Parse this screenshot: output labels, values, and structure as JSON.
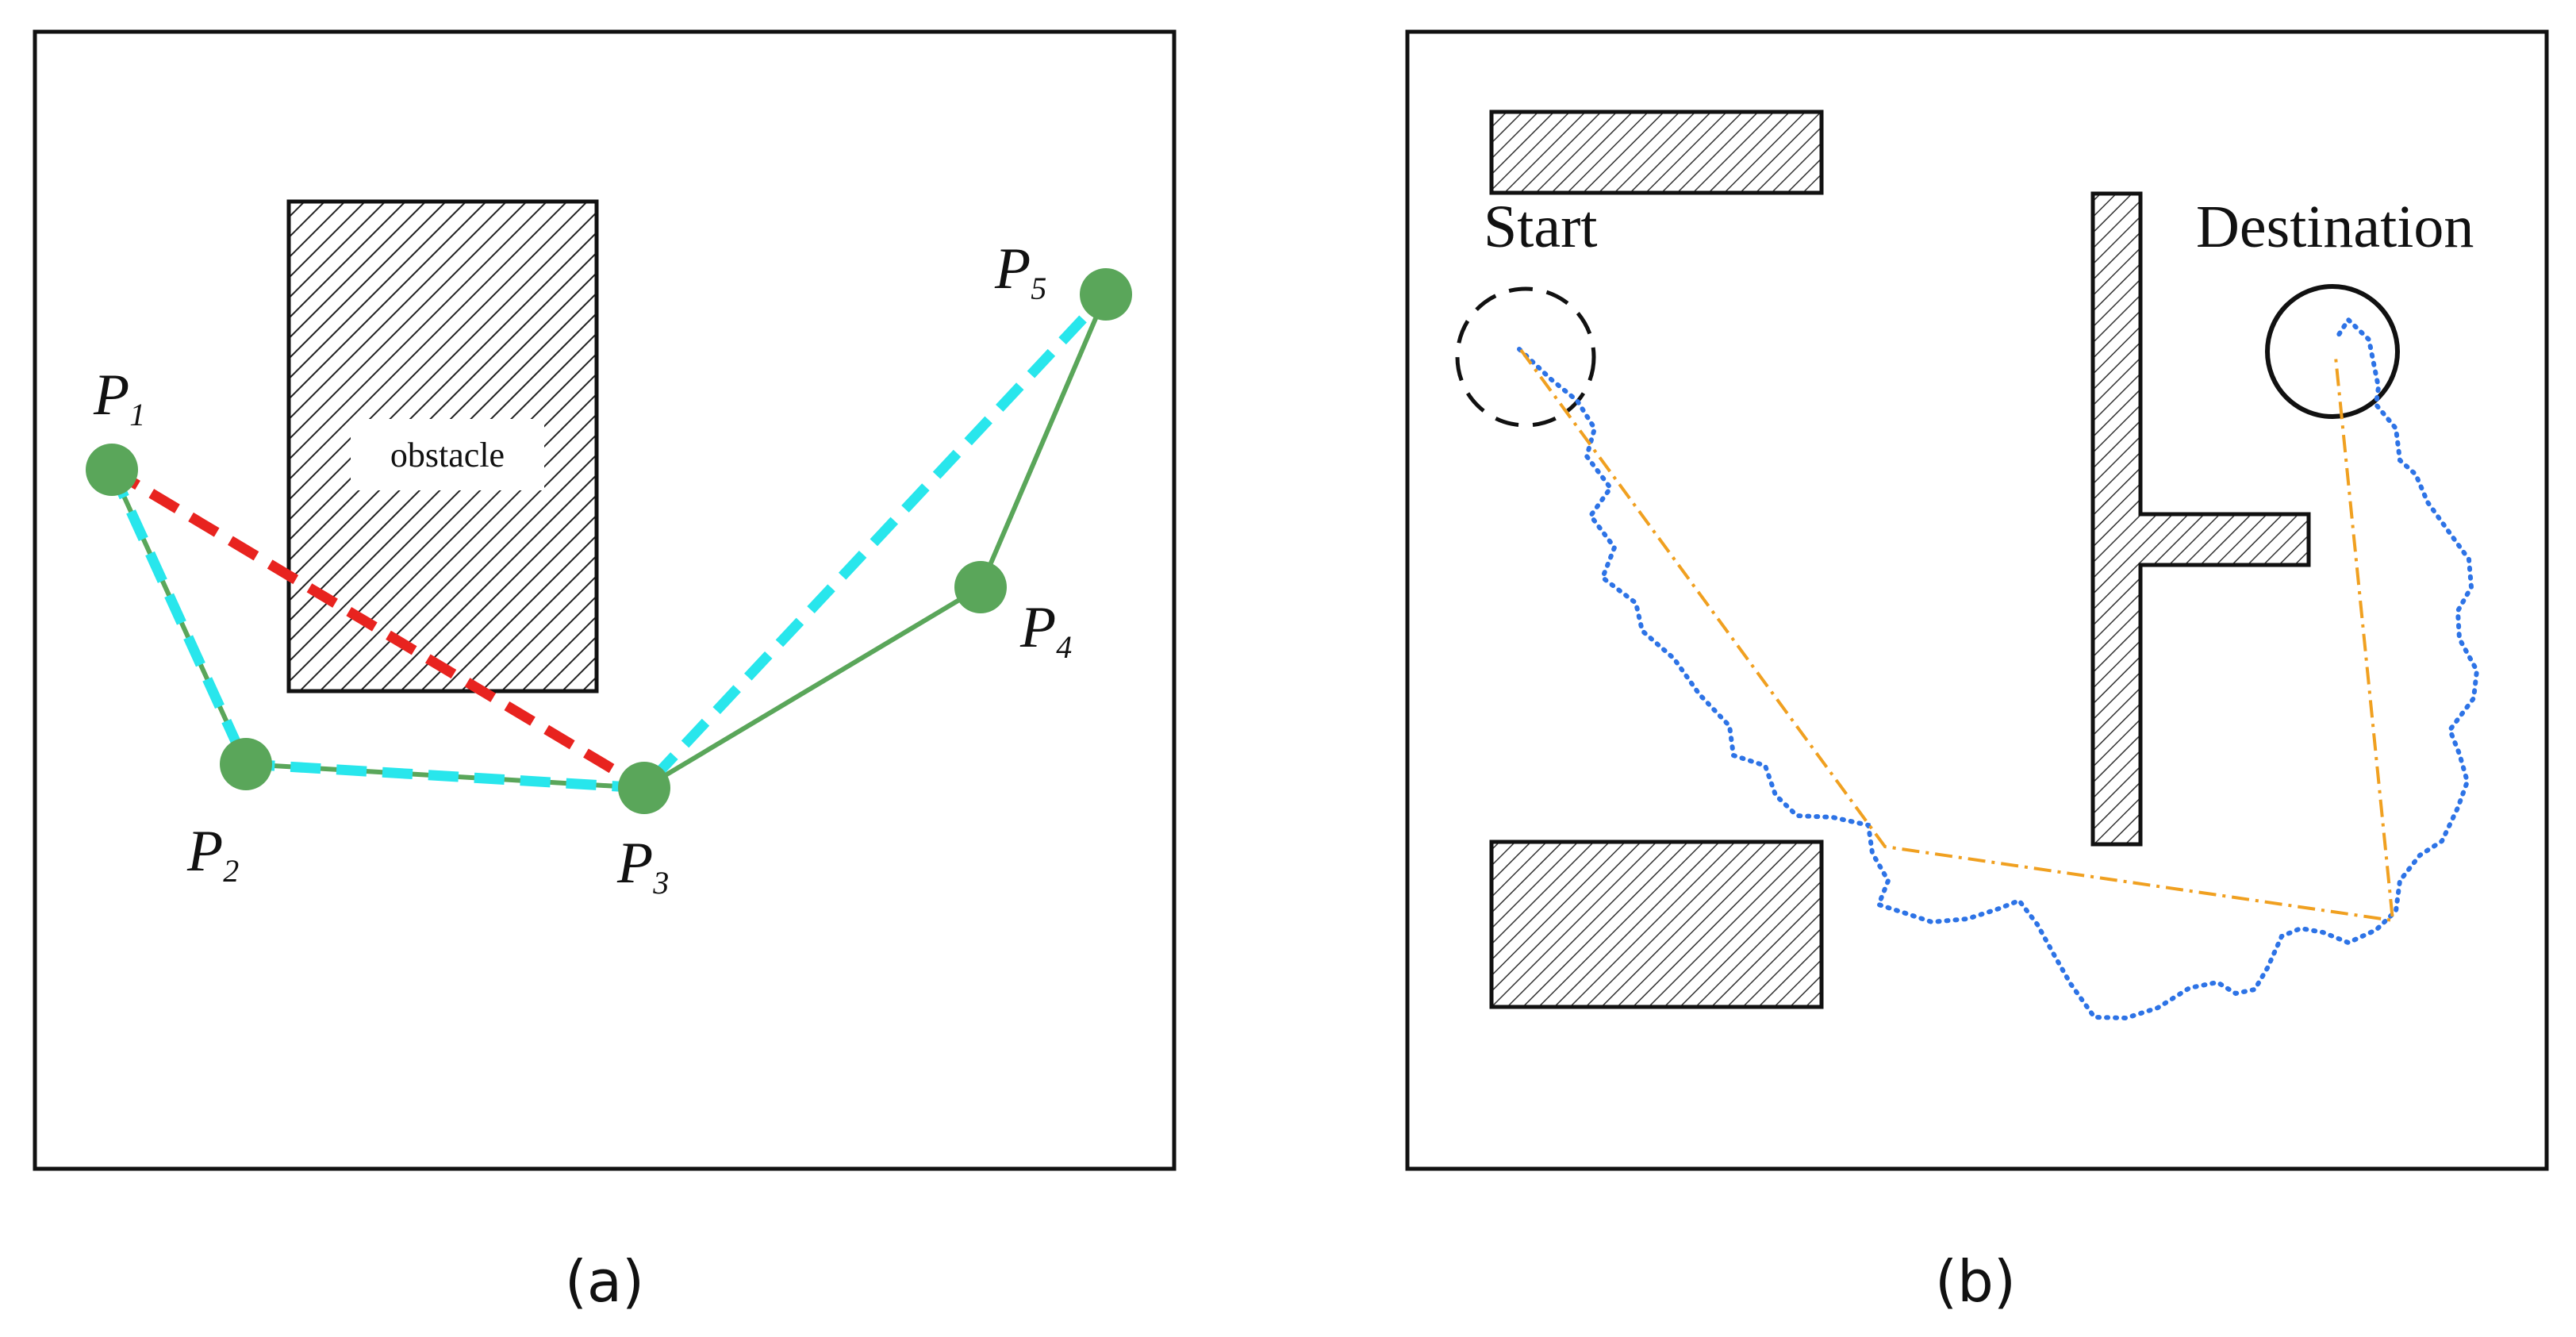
{
  "panel_a": {
    "caption": "(a)",
    "obstacle_label": "obstacle",
    "points": [
      {
        "id": "P1",
        "letter": "P",
        "sub": "1"
      },
      {
        "id": "P2",
        "letter": "P",
        "sub": "2"
      },
      {
        "id": "P3",
        "letter": "P",
        "sub": "3"
      },
      {
        "id": "P4",
        "letter": "P",
        "sub": "4"
      },
      {
        "id": "P5",
        "letter": "P",
        "sub": "5"
      }
    ]
  },
  "panel_b": {
    "caption": "(b)",
    "start_label": "Start",
    "destination_label": "Destination"
  },
  "colors": {
    "point": "#5aa65a",
    "original_path": "#5aa65a",
    "shortcut_red": "#e8231f",
    "shortcut_cyan": "#28e6ec",
    "dotted_path": "#2d73e6",
    "dashdot_path": "#f0a020",
    "border": "#111111",
    "obstacle_fill": "#d9d9d9"
  }
}
